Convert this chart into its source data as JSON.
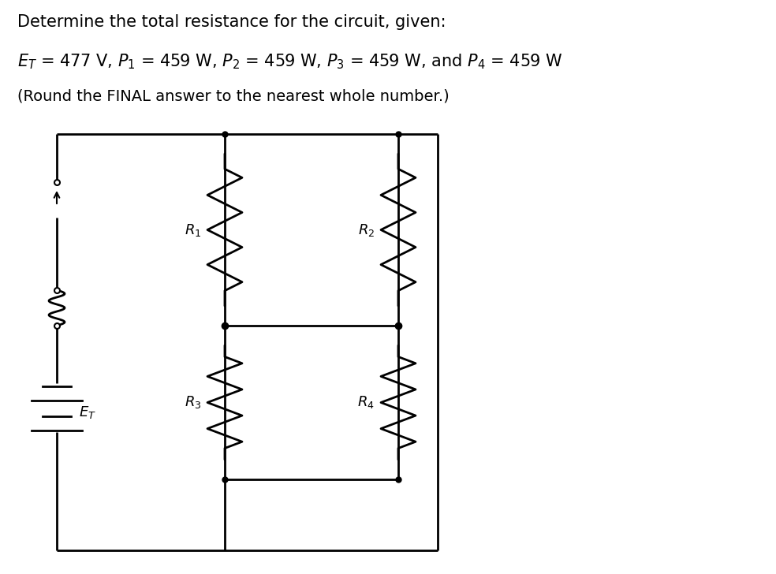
{
  "background_color": "#ffffff",
  "line_color": "#000000",
  "line_width": 2.0,
  "title_line1": "Determine the total resistance for the circuit, given:",
  "title_fontsize": 15,
  "eq_fontsize": 15,
  "note_fontsize": 14,
  "label_fontsize": 13
}
